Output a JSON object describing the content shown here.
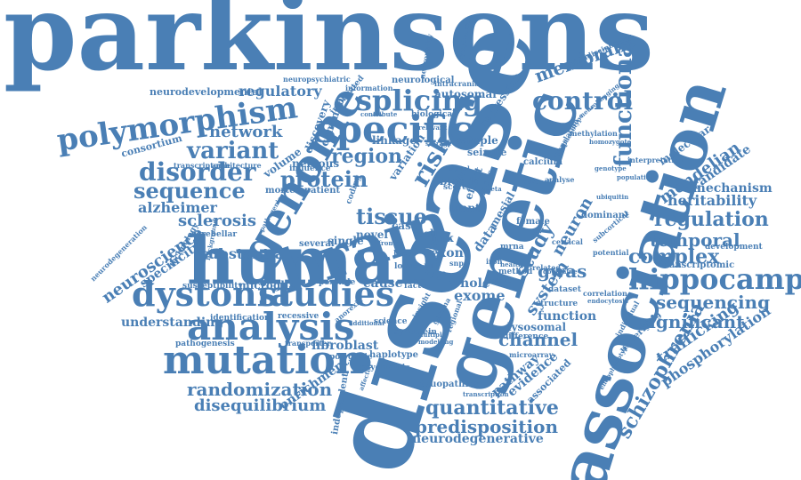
{
  "colors": {
    "word": "#4a7fb5",
    "background": "#ffffff"
  },
  "words": [
    {
      "id": "parkinsons",
      "text": "parkinsons"
    },
    {
      "id": "disease",
      "text": "disease"
    },
    {
      "id": "genetic",
      "text": "genetic"
    },
    {
      "id": "association",
      "text": "association"
    },
    {
      "id": "human",
      "text": "human"
    },
    {
      "id": "brain",
      "text": "brain"
    },
    {
      "id": "genome",
      "text": "genome"
    },
    {
      "id": "specific",
      "text": "specific"
    },
    {
      "id": "analysis",
      "text": "analysis"
    },
    {
      "id": "mutation",
      "text": "mutation"
    },
    {
      "id": "dystonia",
      "text": "dystonia"
    },
    {
      "id": "studies",
      "text": "studies"
    },
    {
      "id": "polymorphism",
      "text": "polymorphism"
    },
    {
      "id": "hippocampal",
      "text": "hippocampal"
    },
    {
      "id": "splicing",
      "text": "splicing"
    },
    {
      "id": "control",
      "text": "control"
    },
    {
      "id": "functional",
      "text": "functional"
    },
    {
      "id": "disorder",
      "text": "disorder"
    },
    {
      "id": "variant",
      "text": "variant"
    },
    {
      "id": "sequence",
      "text": "sequence"
    },
    {
      "id": "protein",
      "text": "protein"
    },
    {
      "id": "region",
      "text": "region"
    },
    {
      "id": "risk",
      "text": "risk"
    },
    {
      "id": "tissue",
      "text": "tissue"
    },
    {
      "id": "regulation",
      "text": "regulation"
    },
    {
      "id": "temporal",
      "text": "temporal"
    },
    {
      "id": "complex",
      "text": "complex"
    },
    {
      "id": "sequencing",
      "text": "sequencing"
    },
    {
      "id": "quantitative",
      "text": "quantitative"
    },
    {
      "id": "predisposition",
      "text": "predisposition"
    },
    {
      "id": "randomization",
      "text": "randomization"
    },
    {
      "id": "disequilibrium",
      "text": "disequilibrium"
    },
    {
      "id": "schizophrenia",
      "text": "schizophrenia"
    },
    {
      "id": "significant",
      "text": "significant"
    },
    {
      "id": "study",
      "text": "study"
    },
    {
      "id": "neuroscience",
      "text": "neuroscience"
    },
    {
      "id": "sclerosis",
      "text": "sclerosis"
    },
    {
      "id": "alzheimer",
      "text": "alzheimer"
    },
    {
      "id": "substantia",
      "text": "substantia"
    },
    {
      "id": "network",
      "text": "network"
    },
    {
      "id": "regulatory",
      "text": "regulatory"
    },
    {
      "id": "membrane",
      "text": "membrane"
    },
    {
      "id": "heritability",
      "text": "heritability"
    },
    {
      "id": "mendelian",
      "text": "mendelian"
    },
    {
      "id": "mechanism",
      "text": "mechanism"
    },
    {
      "id": "candidate",
      "text": "candidate"
    },
    {
      "id": "channel",
      "text": "channel"
    },
    {
      "id": "gwas",
      "text": "gwas"
    },
    {
      "id": "neuron",
      "text": "neuron"
    },
    {
      "id": "system",
      "text": "system"
    },
    {
      "id": "trafficking",
      "text": "trafficking"
    },
    {
      "id": "phosphorylation",
      "text": "phosphorylation"
    },
    {
      "id": "neurodegenerative",
      "text": "neurodegenerative"
    },
    {
      "id": "enrichment",
      "text": "enrichment"
    },
    {
      "id": "understanding",
      "text": "understanding"
    },
    {
      "id": "microglia",
      "text": "microglia"
    },
    {
      "id": "fibroblast",
      "text": "fibroblast"
    },
    {
      "id": "function",
      "text": "function"
    },
    {
      "id": "pathway",
      "text": "pathway"
    },
    {
      "id": "evidence",
      "text": "evidence"
    },
    {
      "id": "lysosomal",
      "text": "lysosomal"
    },
    {
      "id": "cause",
      "text": "cause"
    },
    {
      "id": "whole",
      "text": "whole"
    },
    {
      "id": "exome",
      "text": "exome"
    },
    {
      "id": "novel",
      "text": "novel"
    },
    {
      "id": "case",
      "text": "case"
    },
    {
      "id": "data",
      "text": "data"
    },
    {
      "id": "exon",
      "text": "exon"
    },
    {
      "id": "cell",
      "text": "cell"
    },
    {
      "id": "lrrk",
      "text": "lrrk"
    },
    {
      "id": "mapt",
      "text": "mapt"
    },
    {
      "id": "blood",
      "text": "blood"
    },
    {
      "id": "sample",
      "text": "sample"
    },
    {
      "id": "seizure",
      "text": "seizure"
    },
    {
      "id": "nervous",
      "text": "nervous"
    },
    {
      "id": "volume",
      "text": "volume"
    },
    {
      "id": "linkage",
      "text": "linkage"
    },
    {
      "id": "variation",
      "text": "variation"
    },
    {
      "id": "autosomal",
      "text": "autosomal"
    },
    {
      "id": "regression",
      "text": "regression"
    },
    {
      "id": "neurological",
      "text": "neurological"
    },
    {
      "id": "neurodevelopmental",
      "text": "neurodevelopmental"
    },
    {
      "id": "consortium",
      "text": "consortium"
    },
    {
      "id": "transcriptome",
      "text": "transcriptome"
    },
    {
      "id": "architecture",
      "text": "architecture"
    },
    {
      "id": "influence",
      "text": "influence"
    },
    {
      "id": "neuropsychiatric",
      "text": "neuropsychiatric"
    },
    {
      "id": "information",
      "text": "information"
    },
    {
      "id": "intracranial",
      "text": "intracranial"
    },
    {
      "id": "biological",
      "text": "biological"
    },
    {
      "id": "implicated",
      "text": "implicated"
    },
    {
      "id": "discovery",
      "text": "discovery"
    },
    {
      "id": "common",
      "text": "common"
    },
    {
      "id": "mortem",
      "text": "mortem"
    },
    {
      "id": "patient",
      "text": "patient"
    },
    {
      "id": "cerebellar",
      "text": "cerebellar"
    },
    {
      "id": "specificity",
      "text": "specificity"
    },
    {
      "id": "technology",
      "text": "technology"
    },
    {
      "id": "neurodegeneration",
      "text": "neurodegeneration"
    },
    {
      "id": "susceptibility",
      "text": "susceptibility"
    },
    {
      "id": "identification",
      "text": "identification"
    },
    {
      "id": "pathogenesis",
      "text": "pathogenesis"
    },
    {
      "id": "recessive",
      "text": "recessive"
    },
    {
      "id": "possible",
      "text": "possible"
    },
    {
      "id": "several",
      "text": "several"
    },
    {
      "id": "single",
      "text": "single"
    },
    {
      "id": "transporter",
      "text": "transporter"
    },
    {
      "id": "polygenic",
      "text": "polygenic"
    },
    {
      "id": "haplotype",
      "text": "haplotype"
    },
    {
      "id": "psychiatric",
      "text": "psychiatric"
    },
    {
      "id": "tauopathies",
      "text": "tauopathies"
    },
    {
      "id": "independent",
      "text": "independent"
    },
    {
      "id": "synuclein",
      "text": "synuclein"
    },
    {
      "id": "science",
      "text": "science"
    },
    {
      "id": "difference",
      "text": "difference"
    },
    {
      "id": "structure",
      "text": "structure"
    },
    {
      "id": "associated",
      "text": "associated"
    },
    {
      "id": "correlation",
      "text": "correlation"
    },
    {
      "id": "underlying",
      "text": "underlying"
    },
    {
      "id": "transcriptomic",
      "text": "transcriptomic"
    },
    {
      "id": "development",
      "text": "development"
    },
    {
      "id": "potential",
      "text": "potential"
    },
    {
      "id": "dataset",
      "text": "dataset"
    },
    {
      "id": "dominant",
      "text": "dominant"
    },
    {
      "id": "interpretation",
      "text": "interpretation"
    },
    {
      "id": "molecular",
      "text": "molecular"
    },
    {
      "id": "multidisciplinary",
      "text": "multidisciplinary"
    },
    {
      "id": "methylation",
      "text": "methylation"
    },
    {
      "id": "homozygote",
      "text": "homozygote"
    },
    {
      "id": "female",
      "text": "female"
    },
    {
      "id": "mesial",
      "text": "mesial"
    },
    {
      "id": "cervical",
      "text": "cervical"
    },
    {
      "id": "neuronal",
      "text": "neuronal"
    },
    {
      "id": "score",
      "text": "score"
    },
    {
      "id": "mrna",
      "text": "mrna"
    },
    {
      "id": "lobe",
      "text": "lobe"
    },
    {
      "id": "level",
      "text": "level"
    },
    {
      "id": "factor",
      "text": "factor"
    },
    {
      "id": "type",
      "text": "type"
    },
    {
      "id": "trait",
      "text": "trait"
    },
    {
      "id": "effect",
      "text": "effect"
    },
    {
      "id": "locus",
      "text": "locus"
    },
    {
      "id": "signal",
      "text": "signal"
    },
    {
      "id": "meta",
      "text": "meta"
    },
    {
      "id": "iron",
      "text": "iron"
    },
    {
      "id": "method",
      "text": "method"
    },
    {
      "id": "related",
      "text": "related"
    },
    {
      "id": "microarray",
      "text": "microarray"
    },
    {
      "id": "calcium",
      "text": "calcium"
    },
    {
      "id": "analyse",
      "text": "analyse"
    },
    {
      "id": "population",
      "text": "population"
    },
    {
      "id": "genotype",
      "text": "genotype"
    },
    {
      "id": "subcortical",
      "text": "subcortical"
    },
    {
      "id": "translation",
      "text": "translation"
    },
    {
      "id": "ubiquitin",
      "text": "ubiquitin"
    },
    {
      "id": "insight",
      "text": "insight"
    },
    {
      "id": "gamma",
      "text": "gamma"
    },
    {
      "id": "regional",
      "text": "regional"
    },
    {
      "id": "anorexia",
      "text": "anorexia"
    },
    {
      "id": "multiple",
      "text": "multiple"
    },
    {
      "id": "modelling",
      "text": "modelling"
    },
    {
      "id": "model",
      "text": "model"
    },
    {
      "id": "health",
      "text": "health"
    },
    {
      "id": "endophenotype",
      "text": "endophenotype"
    },
    {
      "id": "endocytosis",
      "text": "endocytosis"
    },
    {
      "id": "transcription",
      "text": "transcription"
    },
    {
      "id": "storage",
      "text": "storage"
    },
    {
      "id": "contribute",
      "text": "contribute"
    },
    {
      "id": "frontal",
      "text": "frontal"
    },
    {
      "id": "neuropathy",
      "text": "neuropathy"
    },
    {
      "id": "cytoplasmic",
      "text": "cytoplasmic"
    },
    {
      "id": "phenotype",
      "text": "phenotype"
    },
    {
      "id": "dopamine",
      "text": "dopamine"
    },
    {
      "id": "snps",
      "text": "snps"
    },
    {
      "id": "cohort",
      "text": "cohort"
    },
    {
      "id": "relevant",
      "text": "relevant"
    },
    {
      "id": "additional",
      "text": "additional"
    },
    {
      "id": "background",
      "text": "background"
    },
    {
      "id": "pathogenic",
      "text": "pathogenic"
    },
    {
      "id": "affected",
      "text": "affected"
    },
    {
      "id": "coding",
      "text": "coding"
    },
    {
      "id": "individual",
      "text": "individual"
    },
    {
      "id": "neuroimaging",
      "text": "neuroimaging"
    }
  ]
}
